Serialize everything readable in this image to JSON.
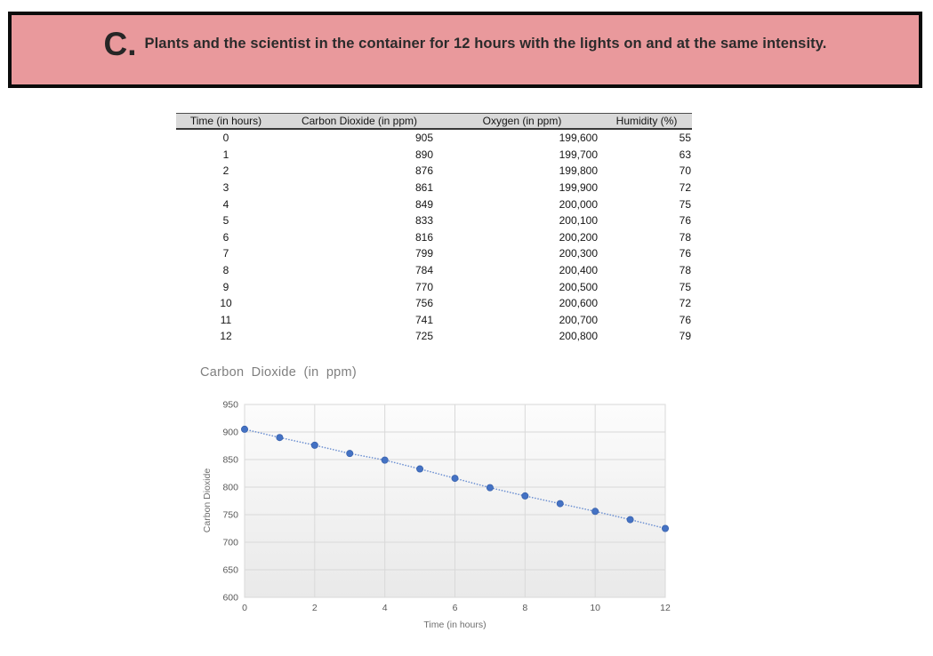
{
  "banner": {
    "prefix": "C.",
    "text": "Plants and the scientist in the container for 12 hours with the lights on and at the same intensity.",
    "bg_color": "#e9999c",
    "border_color": "#0b0b0b"
  },
  "table": {
    "columns": [
      "Time (in hours)",
      "Carbon Dioxide (in ppm)",
      "Oxygen (in ppm)",
      "Humidity (%)"
    ],
    "rows": [
      [
        "0",
        "905",
        "199,600",
        "55"
      ],
      [
        "1",
        "890",
        "199,700",
        "63"
      ],
      [
        "2",
        "876",
        "199,800",
        "70"
      ],
      [
        "3",
        "861",
        "199,900",
        "72"
      ],
      [
        "4",
        "849",
        "200,000",
        "75"
      ],
      [
        "5",
        "833",
        "200,100",
        "76"
      ],
      [
        "6",
        "816",
        "200,200",
        "78"
      ],
      [
        "7",
        "799",
        "200,300",
        "76"
      ],
      [
        "8",
        "784",
        "200,400",
        "78"
      ],
      [
        "9",
        "770",
        "200,500",
        "75"
      ],
      [
        "10",
        "756",
        "200,600",
        "72"
      ],
      [
        "11",
        "741",
        "200,700",
        "76"
      ],
      [
        "12",
        "725",
        "200,800",
        "79"
      ]
    ]
  },
  "chart_data": {
    "type": "line",
    "title": "Carbon Dioxide (in ppm)",
    "xlabel": "Time (in hours)",
    "ylabel": "Carbon Dioxide",
    "x": [
      0,
      1,
      2,
      3,
      4,
      5,
      6,
      7,
      8,
      9,
      10,
      11,
      12
    ],
    "y": [
      905,
      890,
      876,
      861,
      849,
      833,
      816,
      799,
      784,
      770,
      756,
      741,
      725
    ],
    "xlim": [
      0,
      12
    ],
    "ylim": [
      600,
      950
    ],
    "x_ticks": [
      0,
      2,
      4,
      6,
      8,
      10,
      12
    ],
    "y_ticks": [
      600,
      650,
      700,
      750,
      800,
      850,
      900,
      950
    ],
    "grid": true,
    "legend": false,
    "line_style": "dotted",
    "marker": "circle",
    "marker_color": "#4472c4",
    "line_color": "#6b8fd1",
    "grid_color": "#d9d9d9",
    "tick_color": "#595959",
    "plot_bg_top": "#fcfcfc",
    "plot_bg_bottom": "#e9e9e9"
  }
}
